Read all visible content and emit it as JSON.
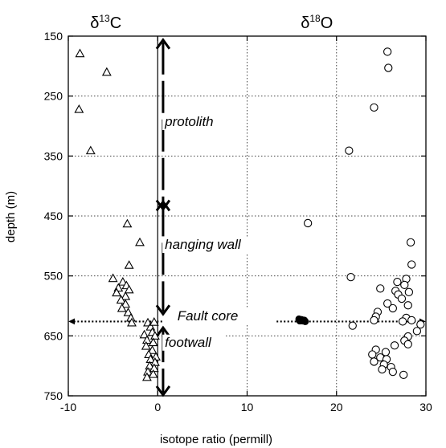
{
  "chart_data": {
    "type": "scatter",
    "xlabel": "isotope ratio (permill)",
    "ylabel": "depth (m)",
    "xlim": [
      -10,
      30
    ],
    "ylim": [
      150,
      750
    ],
    "y_inverted": true,
    "xticks": [
      "-10",
      "0",
      "10",
      "20",
      "30"
    ],
    "yticks": [
      "150",
      "250",
      "350",
      "450",
      "550",
      "650",
      "750"
    ],
    "grid": "dotted",
    "headers": [
      {
        "text": "δ",
        "sup": "13",
        "after": "C"
      },
      {
        "text": "δ",
        "sup": "18",
        "after": "O"
      }
    ],
    "zones": [
      {
        "label": "protolith",
        "x": 0.8,
        "y": 300
      },
      {
        "label": "hanging wall",
        "x": 0.8,
        "y": 505
      },
      {
        "label": "Fault core",
        "x": 2.2,
        "y": 624
      },
      {
        "label": "footwall",
        "x": 0.8,
        "y": 668
      }
    ],
    "arrows": [
      {
        "x": 0.6,
        "y1": 155,
        "y2": 440
      },
      {
        "x": 0.6,
        "y1": 425,
        "y2": 615
      },
      {
        "x": 0.6,
        "y1": 635,
        "y2": 750
      }
    ],
    "fault_lines": [
      {
        "x1": 0.5,
        "x2": -9.8,
        "y": 626
      },
      {
        "x1": 13.3,
        "x2": 29.8,
        "y": 626
      }
    ],
    "series": [
      {
        "marker": "triangle",
        "points": [
          [
            -8.7,
            179
          ],
          [
            -5.7,
            210
          ],
          [
            -8.8,
            272
          ],
          [
            -7.5,
            341
          ],
          [
            -3.4,
            463
          ],
          [
            -2.0,
            494
          ],
          [
            -3.2,
            532
          ],
          [
            -5.0,
            554
          ],
          [
            -3.9,
            560
          ],
          [
            -3.5,
            566
          ],
          [
            -4.4,
            570
          ],
          [
            -3.2,
            573
          ],
          [
            -4.6,
            578
          ],
          [
            -3.6,
            584
          ],
          [
            -4.1,
            590
          ],
          [
            -3.6,
            597
          ],
          [
            -4.0,
            604
          ],
          [
            -3.3,
            611
          ],
          [
            -3.0,
            620
          ],
          [
            -2.9,
            628
          ],
          [
            -1.1,
            628
          ],
          [
            -0.8,
            635
          ],
          [
            -0.4,
            627
          ],
          [
            -0.6,
            644
          ],
          [
            -0.3,
            650
          ],
          [
            -1.5,
            648
          ],
          [
            -1.2,
            657
          ],
          [
            -0.5,
            661
          ],
          [
            -1.3,
            667
          ],
          [
            -0.6,
            674
          ],
          [
            -1.0,
            681
          ],
          [
            -0.2,
            685
          ],
          [
            -0.8,
            689
          ],
          [
            -0.3,
            694
          ],
          [
            -0.9,
            700
          ],
          [
            -0.4,
            704
          ],
          [
            -1.1,
            710
          ],
          [
            -0.5,
            714
          ],
          [
            -1.2,
            719
          ]
        ]
      },
      {
        "marker": "circle",
        "points": [
          [
            25.7,
            176
          ],
          [
            25.8,
            203
          ],
          [
            24.2,
            269
          ],
          [
            21.4,
            341
          ],
          [
            16.8,
            462
          ],
          [
            28.3,
            494
          ],
          [
            28.4,
            531
          ],
          [
            21.6,
            552
          ],
          [
            27.8,
            555
          ],
          [
            26.8,
            560
          ],
          [
            27.6,
            565
          ],
          [
            24.9,
            571
          ],
          [
            26.6,
            575
          ],
          [
            28.1,
            577
          ],
          [
            26.9,
            581
          ],
          [
            27.3,
            588
          ],
          [
            25.7,
            596
          ],
          [
            28.0,
            599
          ],
          [
            26.3,
            604
          ],
          [
            24.6,
            610
          ],
          [
            24.4,
            618
          ],
          [
            27.8,
            620
          ],
          [
            24.2,
            624
          ],
          [
            28.4,
            624
          ],
          [
            27.4,
            626
          ],
          [
            29.4,
            631
          ],
          [
            21.8,
            633
          ],
          [
            29.0,
            642
          ],
          [
            28.0,
            651
          ],
          [
            27.6,
            658
          ],
          [
            28.0,
            664
          ],
          [
            26.5,
            666
          ],
          [
            24.4,
            673
          ],
          [
            25.5,
            677
          ],
          [
            24.0,
            681
          ],
          [
            24.9,
            686
          ],
          [
            25.6,
            689
          ],
          [
            24.2,
            693
          ],
          [
            25.3,
            698
          ],
          [
            26.1,
            702
          ],
          [
            25.1,
            706
          ],
          [
            26.3,
            710
          ],
          [
            27.5,
            715
          ]
        ]
      },
      {
        "marker": "filled-circle",
        "points": [
          [
            15.8,
            622
          ],
          [
            16.1,
            623
          ],
          [
            16.4,
            624
          ],
          [
            15.9,
            625
          ],
          [
            16.2,
            625
          ],
          [
            16.5,
            626
          ]
        ]
      }
    ]
  }
}
